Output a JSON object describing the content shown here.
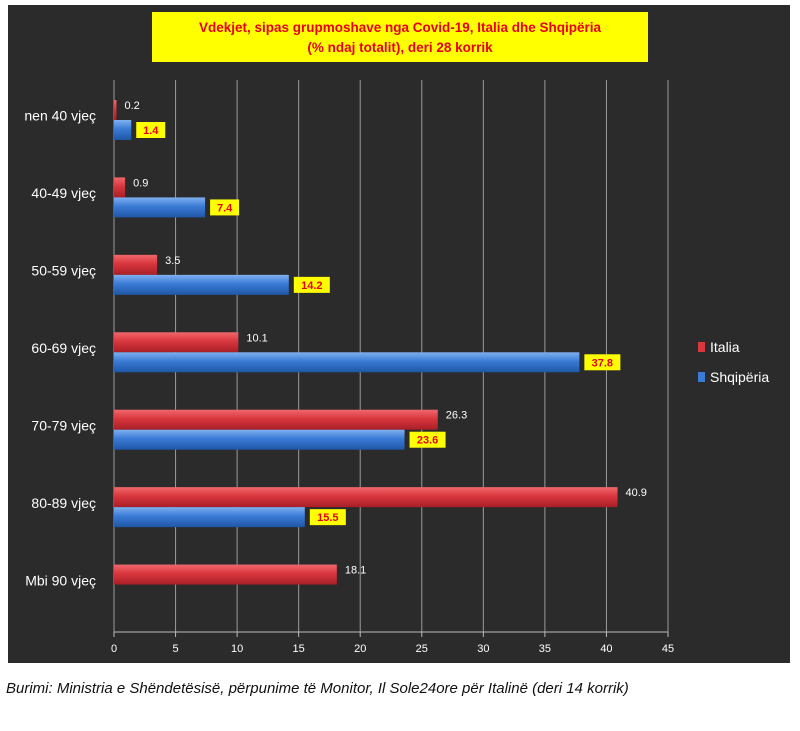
{
  "chart_data": {
    "type": "bar",
    "orientation": "horizontal",
    "title": "Vdekjet, sipas grupmoshave nga Covid-19, Italia dhe Shqipëria",
    "subtitle": "(% ndaj totalit), deri 28 korrik",
    "categories": [
      "nen 40 vjeç",
      "40-49 vjeç",
      "50-59 vjeç",
      "60-69 vjeç",
      "70-79 vjeç",
      "80-89 vjeç",
      "Mbi 90 vjeç"
    ],
    "series": [
      {
        "name": "Italia",
        "color": "#d9363e",
        "values": [
          0.2,
          0.9,
          3.5,
          10.1,
          26.3,
          40.9,
          18.1
        ]
      },
      {
        "name": "Shqipëria",
        "color": "#3a7bd5",
        "values": [
          1.4,
          7.4,
          14.2,
          37.8,
          23.6,
          15.5,
          null
        ]
      }
    ],
    "value_labels": {
      "Italia": [
        "0.2",
        "0.9",
        "3.5",
        "10.1",
        "26.3",
        "40.9",
        "18.1"
      ],
      "Shqipëria": [
        "1.4",
        "7.4",
        "14.2",
        "37.8",
        "23.6",
        "15.5",
        ""
      ]
    },
    "xlim": [
      0,
      45
    ],
    "x_ticks": [
      0,
      5,
      10,
      15,
      20,
      25,
      30,
      35,
      40,
      45
    ],
    "grid": true,
    "legend_position": "right",
    "background_color": "#2b2b2b",
    "title_box_color": "#ffff00",
    "title_text_color": "#e8001c"
  },
  "caption": "Burimi: Ministria e Shëndetësisë, përpunime të Monitor, Il Sole24ore për Italinë (deri 14 korrik)"
}
